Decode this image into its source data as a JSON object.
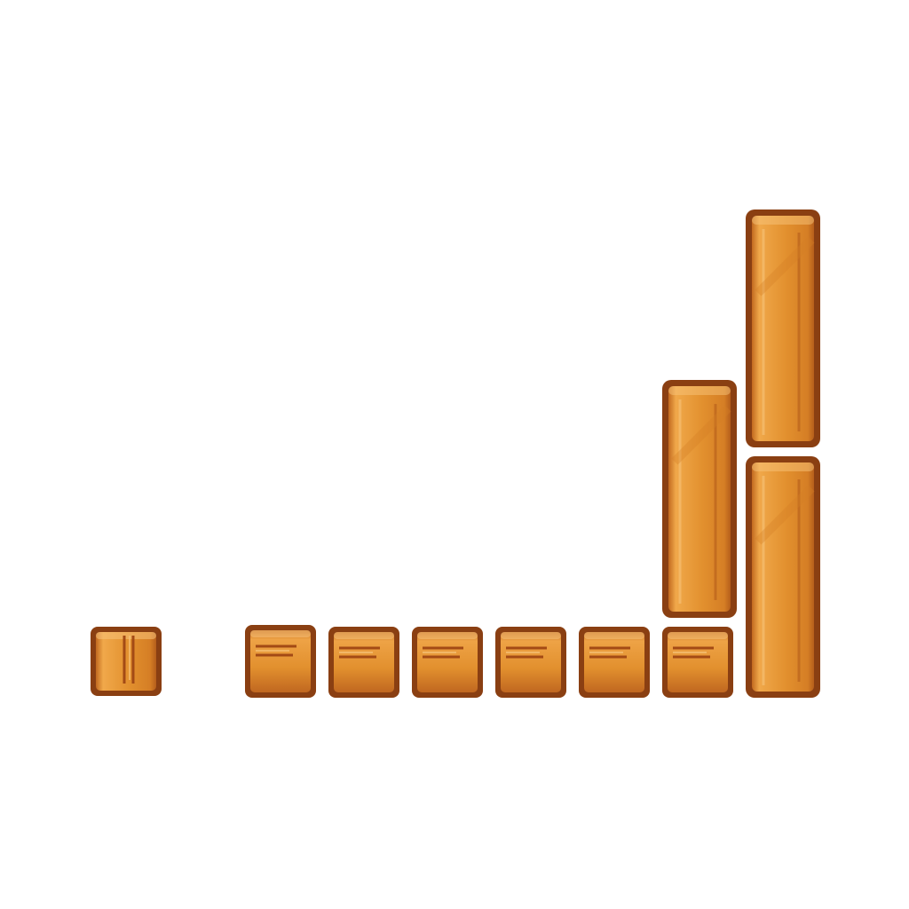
{
  "sprites": {
    "sheet": "wooden-block-tiles",
    "tile_kinds": [
      "small-block-vertical-grain",
      "small-block-horizontal-grain",
      "tall-plank"
    ],
    "colors": {
      "outline": "#8a3f12",
      "fill": "#e2902e",
      "fill_light": "#f0a84a",
      "shade": "#c2691f",
      "highlight": "#f7c37a",
      "background": "#ffffff"
    }
  }
}
